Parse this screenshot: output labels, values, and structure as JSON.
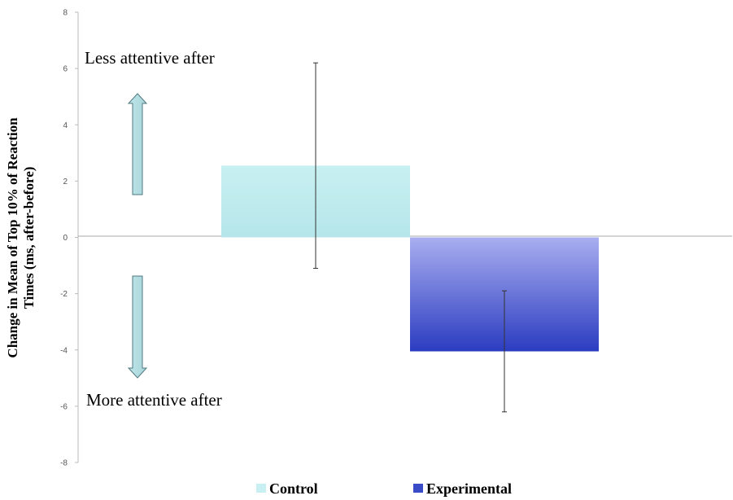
{
  "chart_data": {
    "type": "bar",
    "ylabel_line1": "Change in Mean of Top 10% of Reaction",
    "ylabel_line2": "Times (ms, after-before)",
    "ylim": [
      -8,
      8
    ],
    "yticks": [
      8,
      6,
      4,
      2,
      0,
      -2,
      -4,
      -6,
      -8
    ],
    "grid": false,
    "legend_position": "bottom",
    "series": [
      {
        "name": "Control",
        "value": 2.55,
        "error_low": -1.1,
        "error_high": 6.2,
        "color_top": "#c8f0f2",
        "color_bottom": "#b6e6ea"
      },
      {
        "name": "Experimental",
        "value": -4.05,
        "error_low": -6.2,
        "error_high": -1.9,
        "color_top": "#a9aef0",
        "color_bottom": "#2b3cc0"
      }
    ],
    "annotations": {
      "up": "Less attentive after",
      "down": "More attentive after"
    }
  }
}
